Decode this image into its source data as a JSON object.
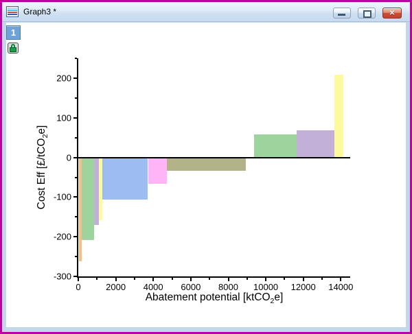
{
  "window": {
    "title": "Graph3 *",
    "icons": {
      "title_icon": "graph-window-icon",
      "minimize": "minimize-icon",
      "restore": "restore-icon",
      "close_glyph": "✕"
    }
  },
  "layers": {
    "active_label": "1",
    "lock_icon": "lock-icon"
  },
  "colors": {
    "window_border": "#BC02A2",
    "frame": "#C3D6EA",
    "titlebar_top": "#F0F7FD",
    "titlebar_bottom": "#C8DBEF",
    "close_button": "#CD4C34",
    "layer_button": "#6FA3D8",
    "lock_green": "#18A048",
    "axis": "#000000",
    "page": "#FFFFFF"
  },
  "chart_data": {
    "type": "bar",
    "subtype": "variable-width-cost-curve",
    "title": "",
    "xlabel_parts": {
      "pre": "Abatement potential [ktCO",
      "sub": "2",
      "post": "e]"
    },
    "ylabel_parts": {
      "pre": "Cost Eff [£/tCO",
      "sub": "2",
      "post": "e]"
    },
    "xlim": [
      0,
      14500
    ],
    "ylim": [
      -300,
      250
    ],
    "x_major_ticks": [
      0,
      2000,
      4000,
      6000,
      8000,
      10000,
      12000,
      14000
    ],
    "x_minor_ticks": [
      1000,
      3000,
      5000,
      7000,
      9000,
      11000,
      13000
    ],
    "y_major_ticks": [
      -300,
      -200,
      -100,
      0,
      100,
      200
    ],
    "y_minor_ticks": [
      -250,
      -150,
      -50,
      50,
      150,
      250
    ],
    "grid": false,
    "legend": "none",
    "ticks_direction": "out",
    "zero_line": true,
    "bars": [
      {
        "x_start": 40,
        "x_end": 170,
        "value": -262,
        "color": "#F5BE85"
      },
      {
        "x_start": 170,
        "x_end": 830,
        "value": -208,
        "color": "#9DD49D"
      },
      {
        "x_start": 830,
        "x_end": 1110,
        "value": -170,
        "color": "#C3B0D9"
      },
      {
        "x_start": 1110,
        "x_end": 1285,
        "value": -159,
        "color": "#FDFA9E"
      },
      {
        "x_start": 1285,
        "x_end": 3715,
        "value": -107,
        "color": "#9CBCF2"
      },
      {
        "x_start": 3715,
        "x_end": 4730,
        "value": -67,
        "color": "#FEB4F6"
      },
      {
        "x_start": 4730,
        "x_end": 8950,
        "value": -33,
        "color": "#B2B389"
      },
      {
        "x_start": 9390,
        "x_end": 11655,
        "value": 58,
        "color": "#9DD49D"
      },
      {
        "x_start": 11655,
        "x_end": 13670,
        "value": 68,
        "color": "#C3B0D9"
      },
      {
        "x_start": 13670,
        "x_end": 14125,
        "value": 208,
        "color": "#FDFA9E"
      }
    ]
  }
}
